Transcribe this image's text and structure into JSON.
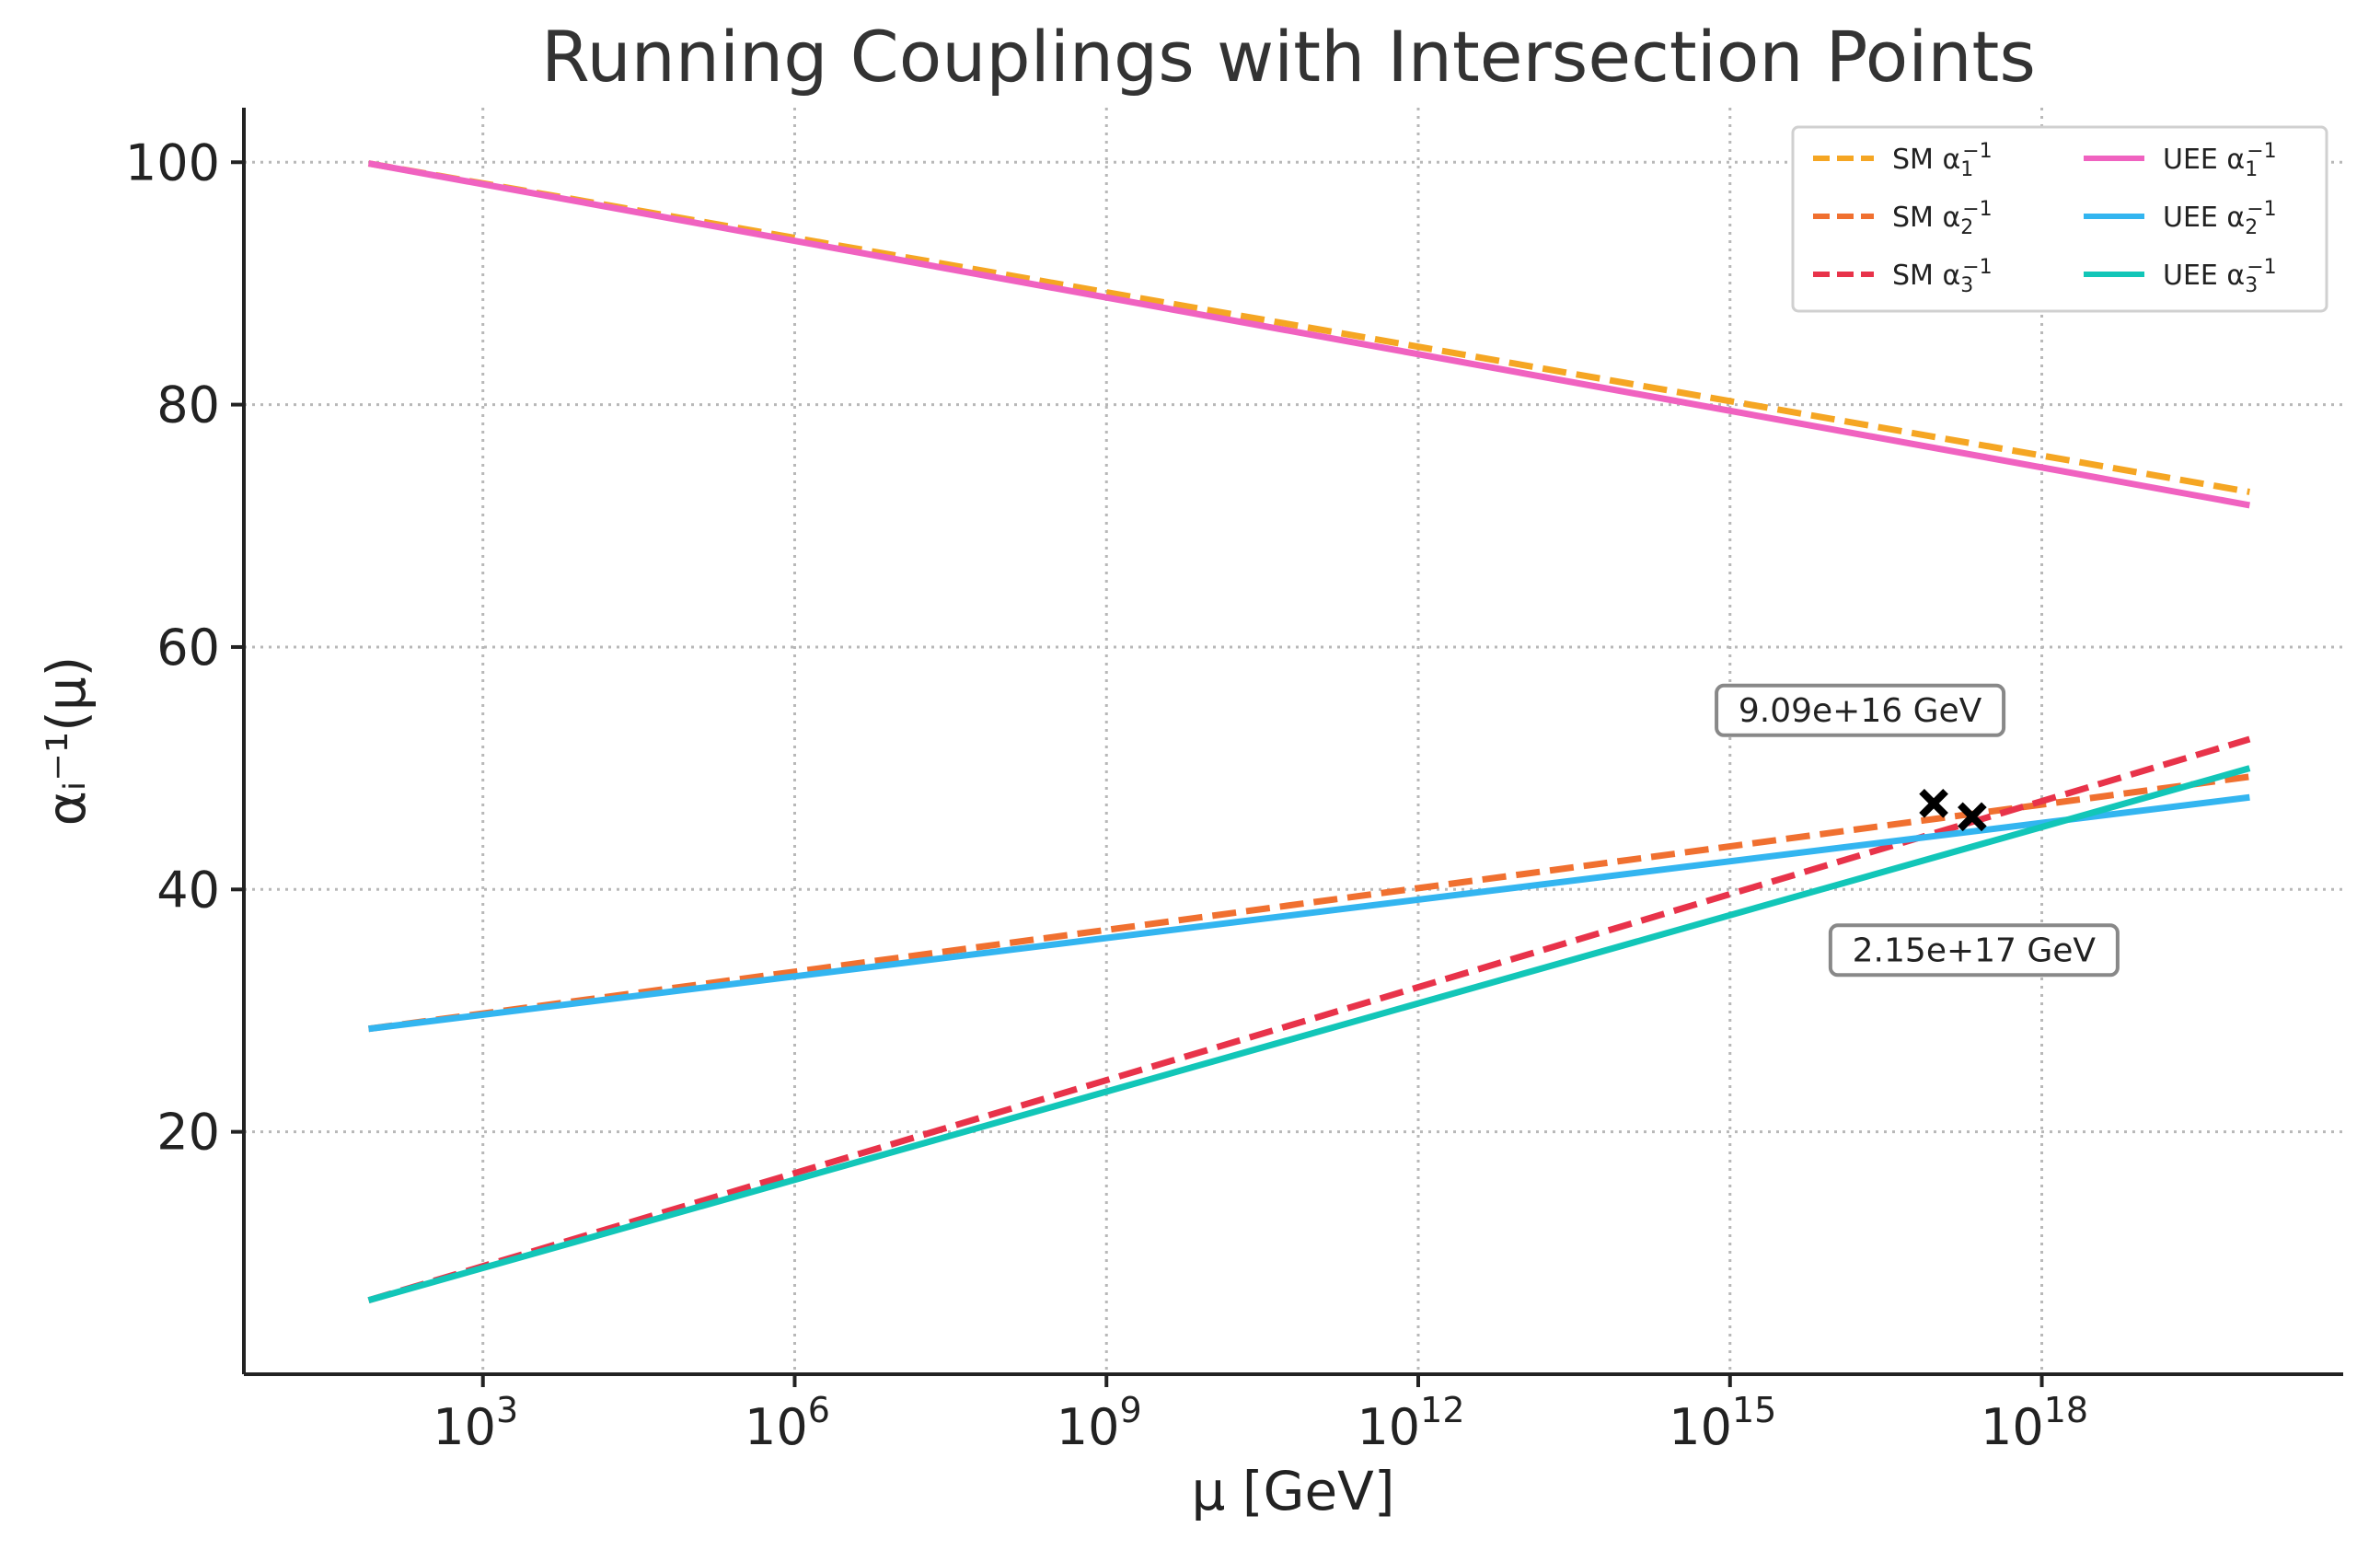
{
  "chart_data": {
    "type": "line",
    "title": "Running Couplings with Intersection Points",
    "xlabel": "μ [GeV]",
    "ylabel": "αᵢ⁻¹(μ)",
    "xscale": "log",
    "x_log10_range": [
      1.9,
      20.0
    ],
    "xlim_log10": [
      0.7,
      20.9
    ],
    "ylim": [
      0,
      104.5
    ],
    "x_ticks": [
      {
        "log10": 3,
        "base": "10",
        "exp": "3"
      },
      {
        "log10": 6,
        "base": "10",
        "exp": "6"
      },
      {
        "log10": 9,
        "base": "10",
        "exp": "9"
      },
      {
        "log10": 12,
        "base": "10",
        "exp": "12"
      },
      {
        "log10": 15,
        "base": "10",
        "exp": "15"
      },
      {
        "log10": 18,
        "base": "10",
        "exp": "18"
      }
    ],
    "y_ticks": [
      20,
      40,
      60,
      80,
      100
    ],
    "y_tick_labels": [
      "20",
      "40",
      "60",
      "80",
      "100"
    ],
    "grid": true,
    "legend_position": "top-right",
    "series": [
      {
        "name": "SM α₁⁻¹",
        "label_prefix": "SM α",
        "label_sub": "1",
        "label_sup": "−1",
        "color": "#F5A623",
        "style": "dashed",
        "start": 99.9,
        "end": 72.8
      },
      {
        "name": "SM α₂⁻¹",
        "label_prefix": "SM α",
        "label_sub": "2",
        "label_sup": "−1",
        "color": "#F07030",
        "style": "dashed",
        "start": 28.5,
        "end": 49.3
      },
      {
        "name": "SM α₃⁻¹",
        "label_prefix": "SM α",
        "label_sub": "3",
        "label_sup": "−1",
        "color": "#E8334A",
        "style": "dashed",
        "start": 6.1,
        "end": 52.4
      },
      {
        "name": "UEE α₁⁻¹",
        "label_prefix": "UEE α",
        "label_sub": "1",
        "label_sup": "−1",
        "color": "#F062C0",
        "style": "solid",
        "start": 99.9,
        "end": 71.7
      },
      {
        "name": "UEE α₂⁻¹",
        "label_prefix": "UEE α",
        "label_sub": "2",
        "label_sup": "−1",
        "color": "#33B5F0",
        "style": "solid",
        "start": 28.5,
        "end": 47.6
      },
      {
        "name": "UEE α₃⁻¹",
        "label_prefix": "UEE α",
        "label_sub": "3",
        "label_sup": "−1",
        "color": "#12C6B8",
        "style": "solid",
        "start": 6.1,
        "end": 50.0
      }
    ],
    "intersections": [
      {
        "log10": 16.96,
        "y": 47.1,
        "label": "9.09e+16 GeV",
        "label_pos": "above"
      },
      {
        "log10": 17.33,
        "y": 46.0,
        "label": "2.15e+17 GeV",
        "label_pos": "below"
      }
    ]
  }
}
